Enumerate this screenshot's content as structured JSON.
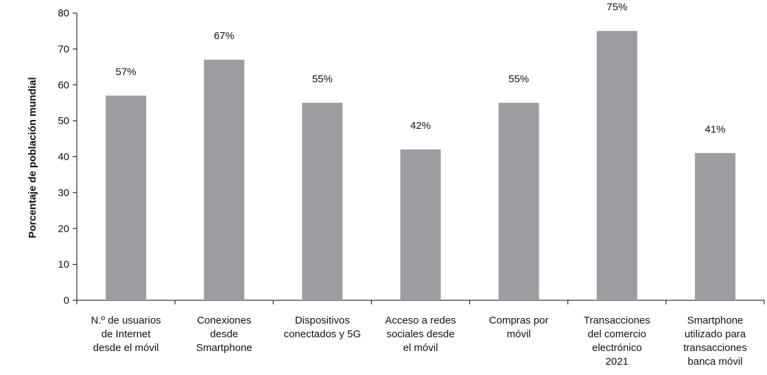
{
  "chart_data": {
    "type": "bar",
    "categories": [
      [
        "N.º de usuarios",
        "de Internet",
        "desde el móvil"
      ],
      [
        "Conexiones",
        "desde",
        "Smartphone"
      ],
      [
        "Dispositivos",
        "conectados y 5G"
      ],
      [
        "Acceso a redes",
        "sociales desde",
        "el móvil"
      ],
      [
        "Compras por",
        "móvil"
      ],
      [
        "Transacciones",
        "del comercio",
        "electrónico",
        "2021"
      ],
      [
        "Smartphone",
        "utilizado para",
        "transacciones",
        "banca móvil"
      ]
    ],
    "values": [
      57,
      67,
      55,
      42,
      55,
      75,
      41
    ],
    "data_labels": [
      "57%",
      "67%",
      "55%",
      "42%",
      "55%",
      "75%",
      "41%"
    ],
    "ylabel": "Porcentaje de población mundial",
    "ylim": [
      0,
      80
    ],
    "yticks": [
      0,
      10,
      20,
      30,
      40,
      50,
      60,
      70,
      80
    ],
    "grid": false,
    "bar_color": "#9d9ca1",
    "axis_color": "#000000"
  }
}
